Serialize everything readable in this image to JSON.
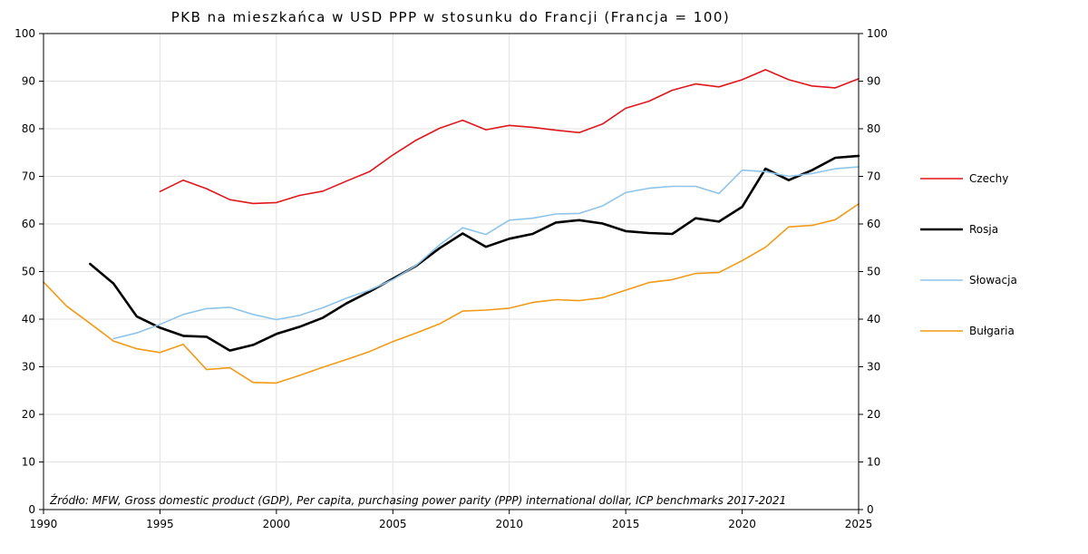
{
  "chart_data": {
    "type": "line",
    "title": "PKB na mieszkańca w USD PPP w stosunku do Francji (Francja = 100)",
    "xlabel": "",
    "ylabel": "",
    "xlim": [
      1990,
      2025
    ],
    "ylim": [
      0,
      100
    ],
    "x_ticks": [
      1990,
      1995,
      2000,
      2005,
      2010,
      2015,
      2020,
      2025
    ],
    "y_ticks": [
      0,
      10,
      20,
      30,
      40,
      50,
      60,
      70,
      80,
      90,
      100
    ],
    "grid": true,
    "legend_position": "right",
    "source": "Źródło: MFW, Gross domestic product (GDP), Per capita, purchasing power parity (PPP) international dollar, ICP benchmarks 2017-2021",
    "series": [
      {
        "name": "Czechy",
        "color": "#e0161b",
        "stroke": 1.6,
        "x": [
          1995,
          1996,
          1997,
          1998,
          1999,
          2000,
          2001,
          2002,
          2003,
          2004,
          2005,
          2006,
          2007,
          2008,
          2009,
          2010,
          2011,
          2012,
          2013,
          2014,
          2015,
          2016,
          2017,
          2018,
          2019,
          2020,
          2021,
          2022,
          2023,
          2024,
          2025
        ],
        "y": [
          66.8,
          69.2,
          67.4,
          65.1,
          64.3,
          64.5,
          66.0,
          66.9,
          69.0,
          71.0,
          74.5,
          77.6,
          80.1,
          81.8,
          79.8,
          80.7,
          80.3,
          79.7,
          79.2,
          81.0,
          84.3,
          85.8,
          88.1,
          89.4,
          88.8,
          90.3,
          92.4,
          90.3,
          89.0,
          88.6,
          90.5
        ]
      },
      {
        "name": "Rosja",
        "color": "#000000",
        "stroke": 2.6,
        "x": [
          1992,
          1993,
          1994,
          1995,
          1996,
          1997,
          1998,
          1999,
          2000,
          2001,
          2002,
          2003,
          2004,
          2005,
          2006,
          2007,
          2008,
          2009,
          2010,
          2011,
          2012,
          2013,
          2014,
          2015,
          2016,
          2017,
          2018,
          2019,
          2020,
          2021,
          2022,
          2023,
          2024,
          2025
        ],
        "y": [
          51.6,
          47.5,
          40.6,
          38.2,
          36.5,
          36.3,
          33.4,
          34.6,
          36.9,
          38.4,
          40.3,
          43.3,
          45.8,
          48.5,
          51.2,
          54.9,
          58.0,
          55.2,
          56.9,
          57.9,
          60.3,
          60.8,
          60.1,
          58.5,
          58.1,
          57.9,
          61.2,
          60.5,
          63.6,
          71.6,
          69.2,
          71.3,
          73.9,
          74.3
        ]
      },
      {
        "name": "Słowacja",
        "color": "#8ec3ea",
        "stroke": 1.6,
        "x": [
          1993,
          1994,
          1995,
          1996,
          1997,
          1998,
          1999,
          2000,
          2001,
          2002,
          2003,
          2004,
          2005,
          2006,
          2007,
          2008,
          2009,
          2010,
          2011,
          2012,
          2013,
          2014,
          2015,
          2016,
          2017,
          2018,
          2019,
          2020,
          2021,
          2022,
          2023,
          2024,
          2025
        ],
        "y": [
          35.9,
          37.1,
          38.9,
          41.0,
          42.2,
          42.5,
          41.0,
          39.9,
          40.8,
          42.4,
          44.4,
          46.1,
          48.3,
          51.3,
          55.6,
          59.2,
          57.8,
          60.8,
          61.2,
          62.1,
          62.2,
          63.8,
          66.6,
          67.5,
          67.9,
          67.9,
          66.4,
          71.3,
          71.0,
          70.0,
          70.6,
          71.6,
          72.0
        ]
      },
      {
        "name": "Bułgaria",
        "color": "#f29a16",
        "stroke": 1.6,
        "x": [
          1990,
          1991,
          1992,
          1993,
          1994,
          1995,
          1996,
          1997,
          1998,
          1999,
          2000,
          2001,
          2002,
          2003,
          2004,
          2005,
          2006,
          2007,
          2008,
          2009,
          2010,
          2011,
          2012,
          2013,
          2014,
          2015,
          2016,
          2017,
          2018,
          2019,
          2020,
          2021,
          2022,
          2023,
          2024,
          2025
        ],
        "y": [
          47.8,
          42.7,
          39.1,
          35.4,
          33.8,
          33.0,
          34.7,
          29.4,
          29.8,
          26.7,
          26.6,
          28.2,
          29.9,
          31.5,
          33.2,
          35.3,
          37.1,
          39.0,
          41.7,
          41.9,
          42.3,
          43.5,
          44.1,
          43.9,
          44.5,
          46.1,
          47.7,
          48.3,
          49.6,
          49.8,
          52.3,
          55.1,
          59.4,
          59.7,
          60.9,
          64.2
        ]
      }
    ]
  }
}
